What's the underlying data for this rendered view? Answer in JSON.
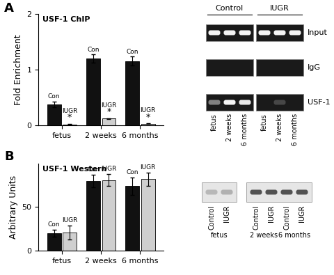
{
  "panel_labels": [
    "A",
    "B"
  ],
  "chart_data": [
    {
      "type": "bar",
      "title": "USF-1 ChIP",
      "y_label": "Fold Enrichment",
      "categories": [
        "fetus",
        "2 weeks",
        "6 months"
      ],
      "series": [
        {
          "name": "Con",
          "color": "#111111",
          "values": [
            0.38,
            1.2,
            1.15
          ],
          "errors": [
            0.05,
            0.07,
            0.08
          ]
        },
        {
          "name": "IUGR",
          "color": "#cfcfcf",
          "values": [
            0.02,
            0.12,
            0.03
          ],
          "errors": [
            0.005,
            0.01,
            0.005
          ]
        }
      ],
      "ylim": [
        0,
        2
      ],
      "yticks": [
        0,
        1,
        2
      ],
      "annotations": [
        {
          "series": "IUGR",
          "category": "fetus",
          "text": "*"
        },
        {
          "series": "IUGR",
          "category": "2 weeks",
          "text": "*"
        },
        {
          "series": "IUGR",
          "category": "6 months",
          "text": "*"
        }
      ]
    },
    {
      "type": "bar",
      "title": "USF-1 Western",
      "y_label": "Arbitrary Units",
      "categories": [
        "fetus",
        "2 weeks",
        "6 months"
      ],
      "series": [
        {
          "name": "Con",
          "color": "#111111",
          "values": [
            20,
            80,
            74
          ],
          "errors": [
            4,
            7,
            10
          ]
        },
        {
          "name": "IUGR",
          "color": "#cfcfcf",
          "values": [
            21,
            81,
            82
          ],
          "errors": [
            8,
            7,
            8
          ]
        }
      ],
      "ylim": [
        0,
        100
      ],
      "yticks": [
        0,
        50
      ]
    }
  ],
  "chip_gel": {
    "columns": [
      "Control",
      "IUGR"
    ],
    "lanes": [
      "fetus",
      "2 weeks",
      "6 months"
    ],
    "rows": [
      {
        "label": "Input",
        "intensity": [
          0.95,
          0.95,
          0.95,
          0.95,
          0.95,
          0.95
        ]
      },
      {
        "label": "IgG",
        "intensity": [
          0,
          0,
          0,
          0,
          0,
          0
        ]
      },
      {
        "label": "USF-1",
        "intensity": [
          0.45,
          0.95,
          0.9,
          0,
          0.2,
          0
        ]
      }
    ]
  },
  "western_blot": {
    "boxes": [
      {
        "lanes": [
          "Control",
          "IUGR"
        ],
        "groups": [
          "fetus"
        ],
        "intensity": [
          0.35,
          0.38
        ]
      },
      {
        "lanes": [
          "Control",
          "IUGR",
          "Control",
          "IUGR"
        ],
        "groups": [
          "2 weeks",
          "6 months"
        ],
        "intensity": [
          0.85,
          0.85,
          0.85,
          0.85
        ]
      }
    ]
  }
}
